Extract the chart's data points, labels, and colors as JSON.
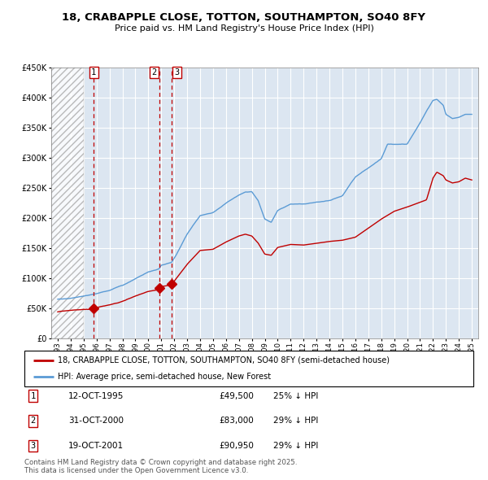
{
  "title": "18, CRABAPPLE CLOSE, TOTTON, SOUTHAMPTON, SO40 8FY",
  "subtitle": "Price paid vs. HM Land Registry's House Price Index (HPI)",
  "legend_line1": "18, CRABAPPLE CLOSE, TOTTON, SOUTHAMPTON, SO40 8FY (semi-detached house)",
  "legend_line2": "HPI: Average price, semi-detached house, New Forest",
  "footer": "Contains HM Land Registry data © Crown copyright and database right 2025.\nThis data is licensed under the Open Government Licence v3.0.",
  "sales": [
    {
      "label": "1",
      "date": "12-OCT-1995",
      "price": 49500,
      "pct": "25% ↓ HPI",
      "x": 1995.78
    },
    {
      "label": "2",
      "date": "31-OCT-2000",
      "price": 83000,
      "pct": "29% ↓ HPI",
      "x": 2000.83
    },
    {
      "label": "3",
      "date": "19-OCT-2001",
      "price": 90950,
      "pct": "29% ↓ HPI",
      "x": 2001.8
    }
  ],
  "hpi_color": "#5b9bd5",
  "price_color": "#c00000",
  "background_color": "#dce6f1",
  "grid_color": "#ffffff",
  "ylim": [
    0,
    450000
  ],
  "xlim": [
    1992.5,
    2025.5
  ],
  "hatch_end_x": 1995.0,
  "yticks": [
    0,
    50000,
    100000,
    150000,
    200000,
    250000,
    300000,
    350000,
    400000,
    450000
  ]
}
